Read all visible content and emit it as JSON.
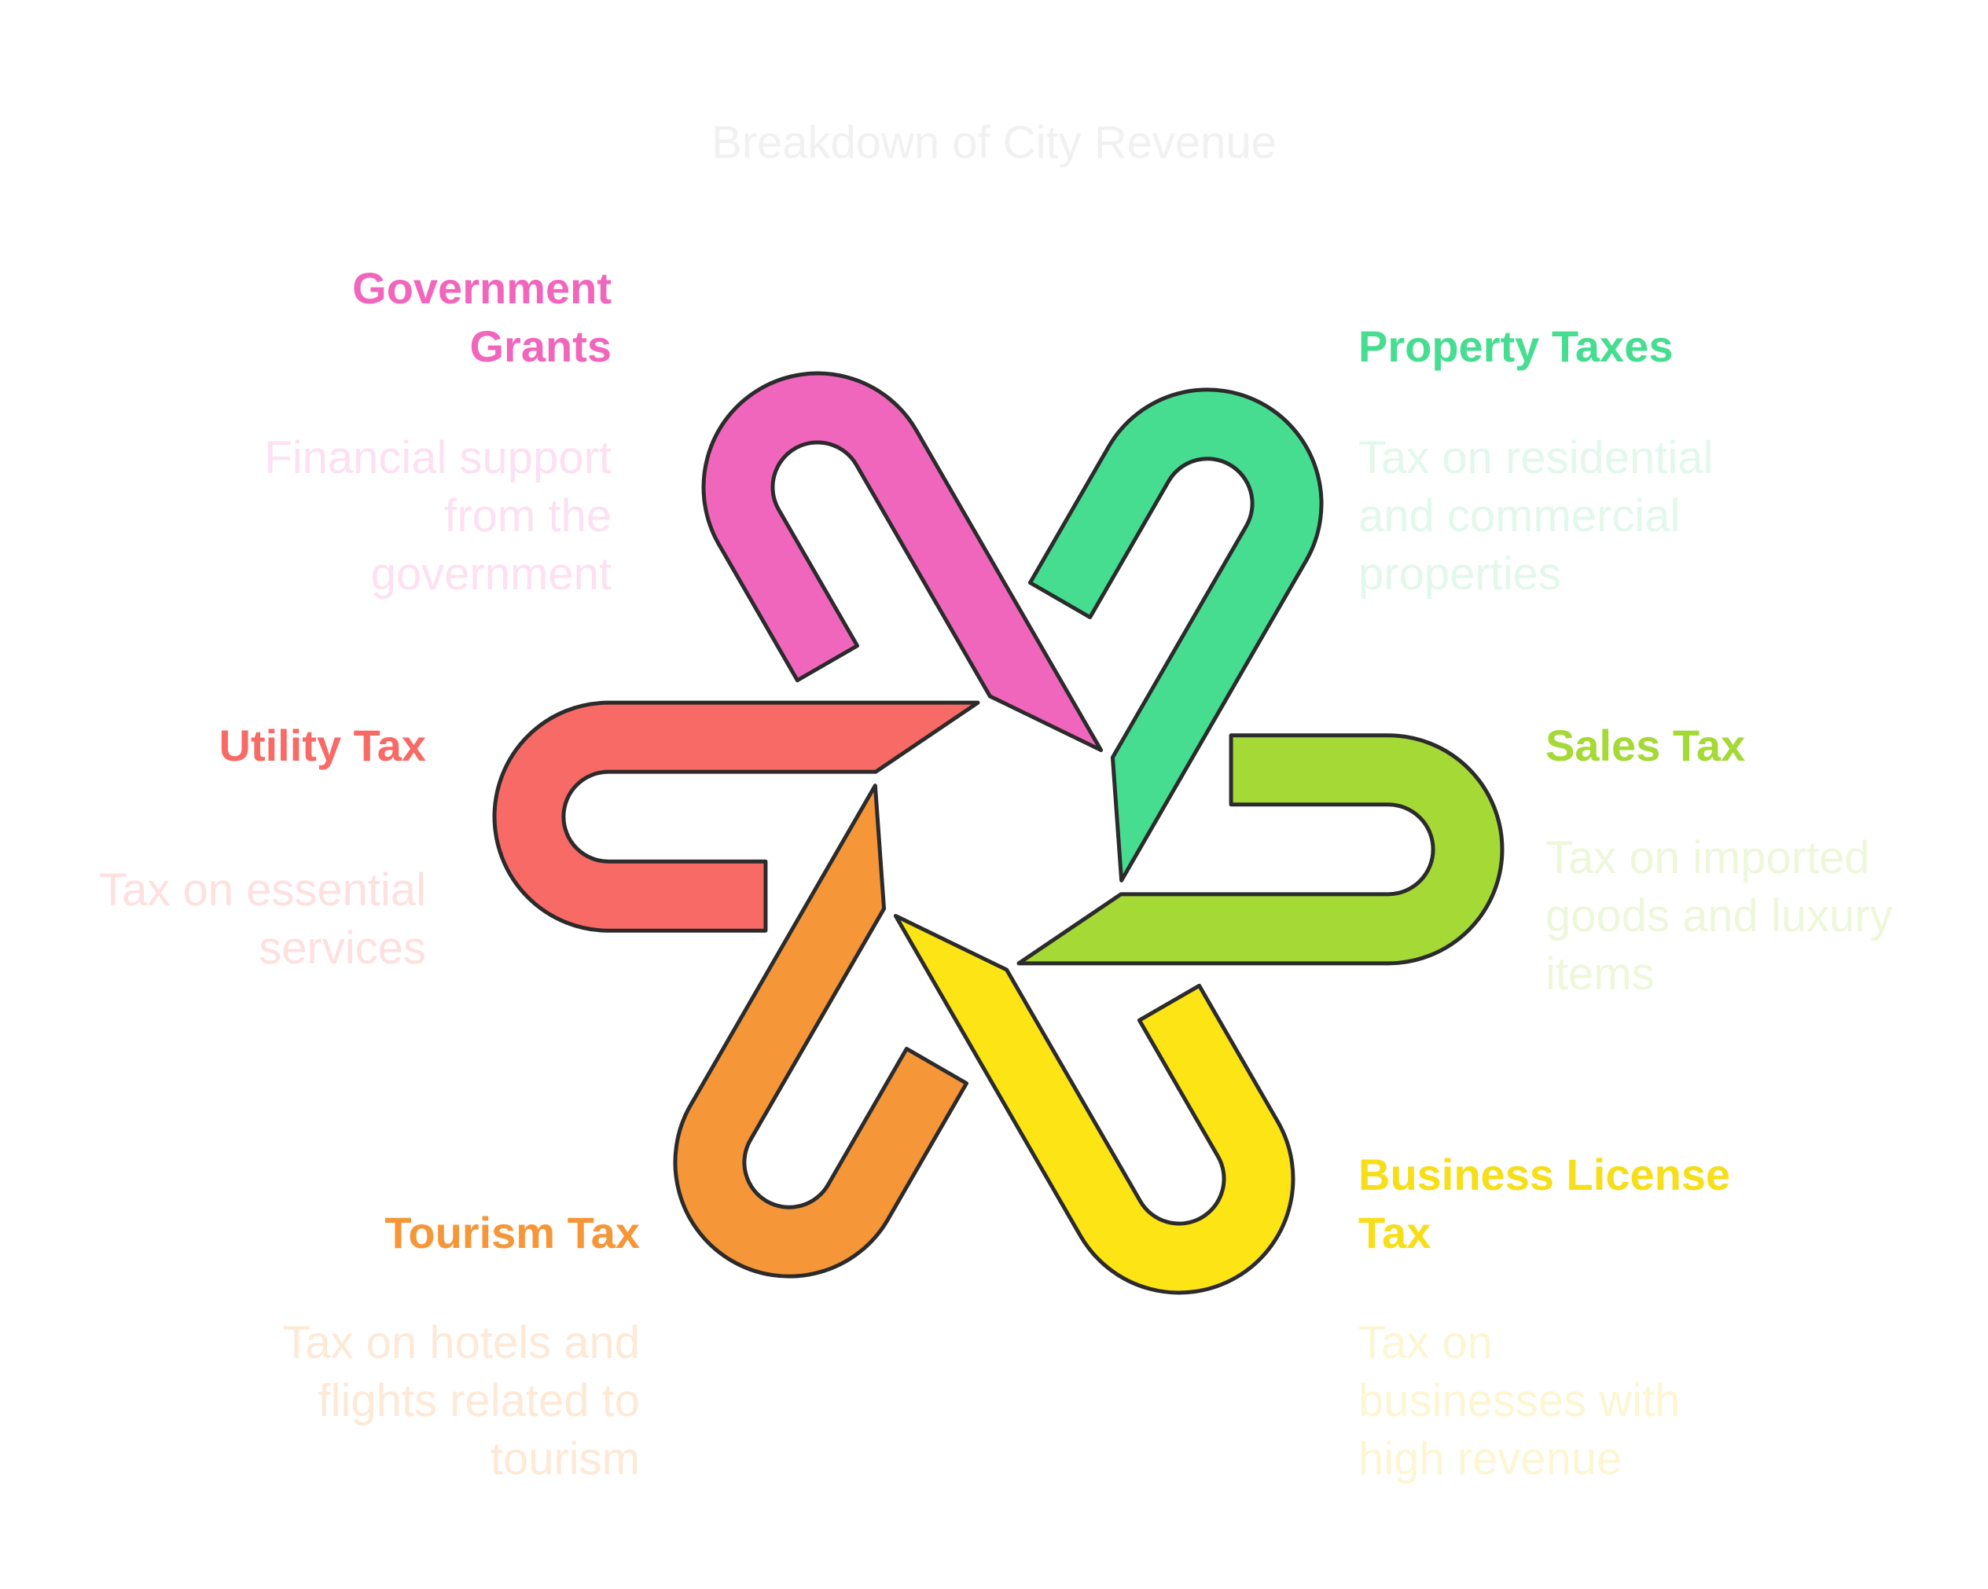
{
  "title": "Breakdown of City Revenue",
  "colors": {
    "outline": "#2b2b2b",
    "government_grants": "#f166bd",
    "property_taxes": "#46dd91",
    "sales_tax": "#a5d936",
    "business_license_tax": "#fde515",
    "tourism_tax": "#f59638",
    "utility_tax": "#f86a65"
  },
  "segments": [
    {
      "id": "government_grants",
      "label": "Government Grants",
      "description": "Financial support from the government",
      "label_color": "#f166bd",
      "description_color": "#fde0f1"
    },
    {
      "id": "property_taxes",
      "label": "Property Taxes",
      "description": "Tax on residential and commercial properties",
      "label_color": "#46dd91",
      "description_color": "#e2f8ec"
    },
    {
      "id": "sales_tax",
      "label": "Sales Tax",
      "description": "Tax on imported goods and luxury items",
      "label_color": "#a5d936",
      "description_color": "#eef7da"
    },
    {
      "id": "business_license_tax",
      "label": "Business License Tax",
      "description": "Tax on businesses with high revenue",
      "label_color": "#f6de18",
      "description_color": "#fdf6d3"
    },
    {
      "id": "tourism_tax",
      "label": "Tourism Tax",
      "description": "Tax on hotels and flights related to tourism",
      "label_color": "#f59638",
      "description_color": "#fde9d6"
    },
    {
      "id": "utility_tax",
      "label": "Utility Tax",
      "description": "Tax on essential services",
      "label_color": "#f86a65",
      "description_color": "#fde0df"
    }
  ]
}
